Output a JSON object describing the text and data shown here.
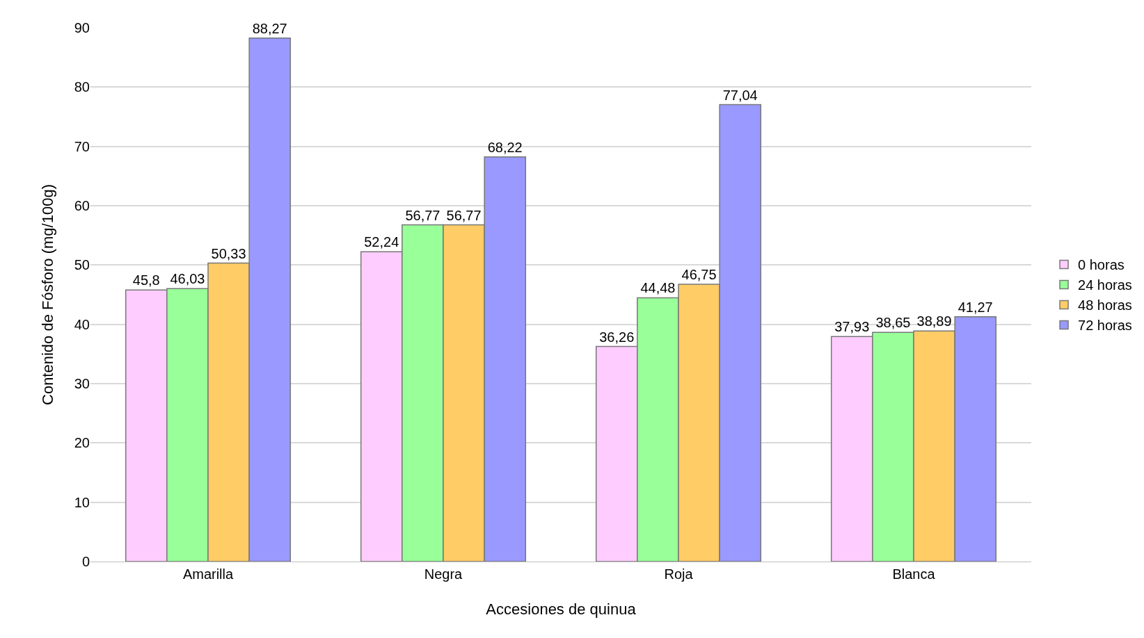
{
  "chart_data": {
    "type": "bar",
    "xlabel": "Accesiones de quinua",
    "ylabel": "Contenido de Fósforo (mg/100g)",
    "categories": [
      "Amarilla",
      "Negra",
      "Roja",
      "Blanca"
    ],
    "series": [
      {
        "name": "0 horas",
        "color": "#ffccff",
        "values": [
          45.8,
          52.24,
          36.26,
          37.93
        ],
        "value_labels": [
          "45,8",
          "52,24",
          "36,26",
          "37,93"
        ]
      },
      {
        "name": "24 horas",
        "color": "#99ff99",
        "values": [
          46.03,
          56.77,
          44.48,
          38.65
        ],
        "value_labels": [
          "46,03",
          "56,77",
          "44,48",
          "38,65"
        ]
      },
      {
        "name": "48 horas",
        "color": "#ffcc66",
        "values": [
          50.33,
          56.77,
          46.75,
          38.89
        ],
        "value_labels": [
          "50,33",
          "56,77",
          "46,75",
          "38,89"
        ]
      },
      {
        "name": "72 horas",
        "color": "#9999ff",
        "values": [
          88.27,
          68.22,
          77.04,
          41.27
        ],
        "value_labels": [
          "88,27",
          "68,22",
          "77,04",
          "41,27"
        ]
      }
    ],
    "ylim": [
      0,
      90
    ],
    "yticks": [
      0,
      10,
      20,
      30,
      40,
      50,
      60,
      70,
      80,
      90
    ],
    "grid": "y",
    "legend": "right"
  }
}
